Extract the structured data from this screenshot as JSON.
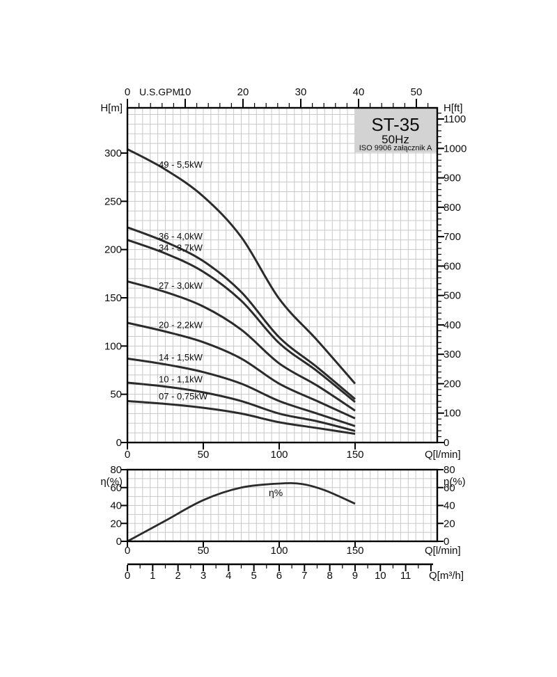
{
  "figure": {
    "title_box": {
      "model": "ST-35",
      "frequency": "50Hz",
      "standard": "ISO 9906 załącznik A"
    }
  },
  "colors": {
    "curve": "#2b2b2b",
    "grid": "#c8c8c8",
    "axis": "#000000",
    "text": "#0d0d0d",
    "box_bg": "#d3d3d3"
  },
  "chart_data": [
    {
      "id": "head-capacity",
      "type": "line",
      "xlabel_bottom": "Q[l/min]",
      "xlabel_top": "U.S.GPM",
      "ylabel_left": "H[m]",
      "ylabel_right": "H[ft]",
      "x_lmin": [
        0,
        25,
        50,
        75,
        100,
        125,
        150
      ],
      "xlim_lmin": [
        0,
        204
      ],
      "ylim_m": [
        0,
        347
      ],
      "bottom_ticks_lmin": [
        0,
        50,
        100,
        150
      ],
      "top_ticks_gpm": [
        0,
        10,
        20,
        30,
        40,
        50
      ],
      "left_ticks_m": [
        0,
        50,
        100,
        150,
        200,
        250,
        300
      ],
      "right_ticks_ft": [
        0,
        100,
        200,
        300,
        400,
        500,
        600,
        700,
        800,
        900,
        1000,
        1100
      ],
      "grid": "on",
      "series": [
        {
          "label": "49 - 5,5kW",
          "head_m": [
            304,
            283,
            255,
            213,
            149,
            106,
            61
          ]
        },
        {
          "label": "36 - 4,0kW",
          "head_m": [
            223,
            208,
            188,
            156,
            109,
            78,
            45
          ]
        },
        {
          "label": "34 - 3,7kW",
          "head_m": [
            210,
            196,
            177,
            147,
            103,
            74,
            42
          ]
        },
        {
          "label": "27 - 3,0kW",
          "head_m": [
            167,
            156,
            141,
            117,
            82,
            59,
            33
          ]
        },
        {
          "label": "20 - 2,2kW",
          "head_m": [
            124,
            115,
            104,
            87,
            61,
            43,
            25
          ]
        },
        {
          "label": "14 - 1,5kW",
          "head_m": [
            87,
            81,
            73,
            61,
            43,
            30,
            17
          ]
        },
        {
          "label": "10 - 1,1kW",
          "head_m": [
            62,
            58,
            52,
            43,
            30,
            22,
            12
          ]
        },
        {
          "label": "07 - 0,75kW",
          "head_m": [
            43,
            40,
            36,
            30,
            21,
            15,
            9
          ]
        }
      ]
    },
    {
      "id": "efficiency",
      "type": "line",
      "xlabel_bottom": "Q[l/min]",
      "ylabel_left": "η(%)",
      "ylabel_right": "η(%)",
      "curve_label": "η%",
      "x_lmin": [
        0,
        25,
        50,
        75,
        100,
        115,
        130,
        150
      ],
      "eta_pct": [
        0,
        23,
        46,
        60,
        64.5,
        64,
        57,
        42
      ],
      "xlim_lmin": [
        0,
        204
      ],
      "ylim_pct": [
        0,
        80
      ],
      "bottom_ticks_lmin": [
        0,
        50,
        100,
        150
      ],
      "left_ticks_pct": [
        0,
        20,
        40,
        60,
        80
      ],
      "right_ticks_pct": [
        0,
        20,
        40,
        60,
        80
      ],
      "grid": "on"
    }
  ],
  "m3h_scale": {
    "label": "Q[m³/h]",
    "ticks": [
      0,
      1,
      2,
      3,
      4,
      5,
      6,
      7,
      8,
      9,
      10,
      11
    ]
  }
}
